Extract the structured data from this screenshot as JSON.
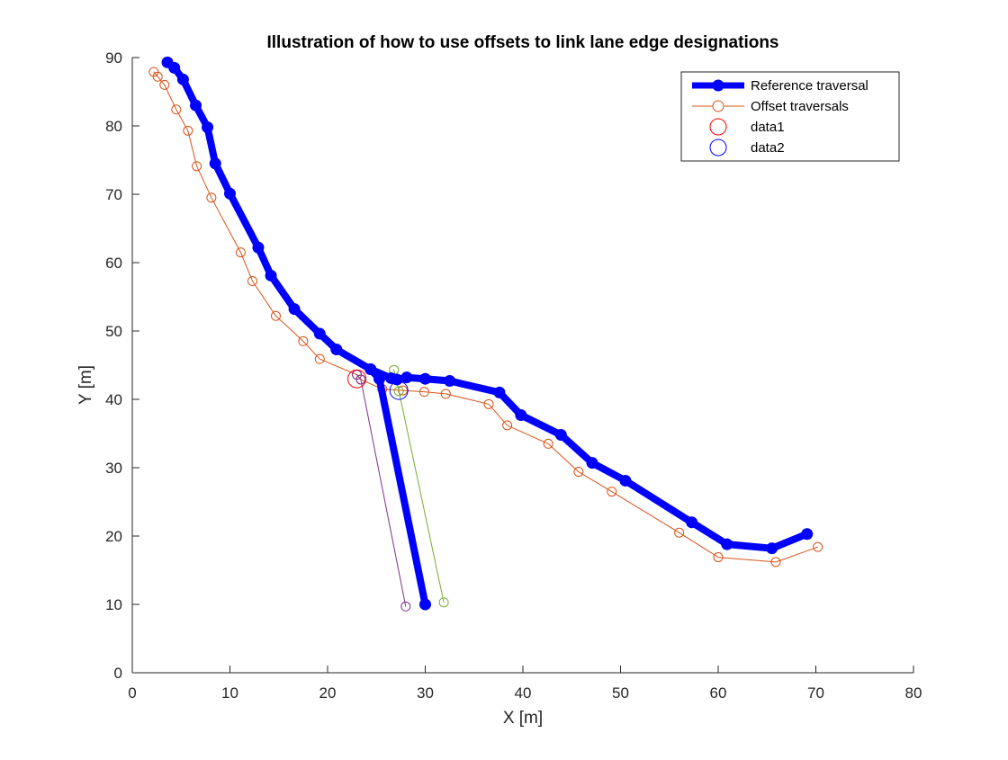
{
  "chart_data": {
    "type": "line",
    "title": "Illustration of how to use offsets to link lane edge designations",
    "xlabel": "X [m]",
    "ylabel": "Y [m]",
    "xlim": [
      0,
      80
    ],
    "ylim": [
      0,
      90
    ],
    "x_ticks": [
      0,
      10,
      20,
      30,
      40,
      50,
      60,
      70,
      80
    ],
    "y_ticks": [
      0,
      10,
      20,
      30,
      40,
      50,
      60,
      70,
      80,
      90
    ],
    "grid": false,
    "legend_position": "top-right",
    "legend": [
      {
        "label": "Reference traversal",
        "style": "thick-line-filled-marker",
        "color": "#0000ff"
      },
      {
        "label": "Offset traversals",
        "style": "line-open-marker",
        "color": "#d95319"
      },
      {
        "label": "data1",
        "style": "open-marker",
        "color": "#ff0000"
      },
      {
        "label": "data2",
        "style": "open-marker",
        "color": "#0000ff"
      }
    ],
    "series": [
      {
        "name": "Reference traversal",
        "role": "reference",
        "color": "#0000ff",
        "segments": [
          [
            [
              3.6,
              89.3
            ],
            [
              4.3,
              88.5
            ],
            [
              5.2,
              86.8
            ],
            [
              6.5,
              83.0
            ],
            [
              7.7,
              79.8
            ],
            [
              8.5,
              74.5
            ],
            [
              10.0,
              70.1
            ],
            [
              12.9,
              62.2
            ],
            [
              14.2,
              58.1
            ],
            [
              16.6,
              53.2
            ],
            [
              19.2,
              49.6
            ],
            [
              20.9,
              47.3
            ],
            [
              24.4,
              44.4
            ],
            [
              26.5,
              43.1
            ],
            [
              27.1,
              42.9
            ],
            [
              28.1,
              43.2
            ],
            [
              30.0,
              43.0
            ],
            [
              32.5,
              42.7
            ],
            [
              37.6,
              41.0
            ],
            [
              39.8,
              37.7
            ],
            [
              43.9,
              34.8
            ],
            [
              47.1,
              30.7
            ],
            [
              50.5,
              28.1
            ],
            [
              57.3,
              22.0
            ],
            [
              60.9,
              18.8
            ],
            [
              65.5,
              18.2
            ],
            [
              69.1,
              20.3
            ]
          ],
          [
            [
              24.4,
              44.4
            ],
            [
              25.3,
              43.0
            ],
            [
              30.0,
              10.0
            ]
          ]
        ]
      },
      {
        "name": "Offset traversals",
        "role": "offset",
        "color": "#d95319",
        "segments": [
          [
            [
              2.2,
              87.9
            ],
            [
              2.6,
              87.2
            ],
            [
              3.3,
              86.0
            ],
            [
              4.5,
              82.4
            ],
            [
              5.7,
              79.3
            ],
            [
              6.6,
              74.1
            ],
            [
              8.1,
              69.5
            ],
            [
              11.1,
              61.5
            ],
            [
              12.3,
              57.3
            ],
            [
              14.7,
              52.2
            ],
            [
              17.5,
              48.5
            ],
            [
              19.2,
              45.9
            ],
            [
              23.0,
              43.6
            ],
            [
              23.4,
              42.9
            ],
            [
              25.6,
              41.5
            ],
            [
              27.7,
              41.3
            ],
            [
              29.9,
              41.1
            ],
            [
              32.1,
              40.8
            ],
            [
              36.5,
              39.3
            ],
            [
              38.4,
              36.2
            ],
            [
              42.6,
              33.5
            ],
            [
              45.7,
              29.4
            ],
            [
              49.1,
              26.5
            ],
            [
              56.0,
              20.5
            ],
            [
              60.0,
              16.9
            ],
            [
              65.9,
              16.2
            ],
            [
              70.2,
              18.4
            ]
          ]
        ]
      },
      {
        "name": "",
        "role": "link-purple",
        "color": "#7e2f8e",
        "segments": [
          [
            [
              23.0,
              43.6
            ],
            [
              23.4,
              42.9
            ],
            [
              28.0,
              9.7
            ]
          ]
        ]
      },
      {
        "name": "",
        "role": "link-green",
        "color": "#77ac30",
        "segments": [
          [
            [
              26.8,
              44.3
            ],
            [
              27.3,
              41.2
            ],
            [
              31.9,
              10.3
            ]
          ]
        ]
      }
    ],
    "highlight_points": [
      {
        "name": "data1",
        "x": 23.0,
        "y": 43.0,
        "color": "#ff0000"
      },
      {
        "name": "data2",
        "x": 27.3,
        "y": 41.3,
        "color": "#0000ff"
      }
    ]
  }
}
